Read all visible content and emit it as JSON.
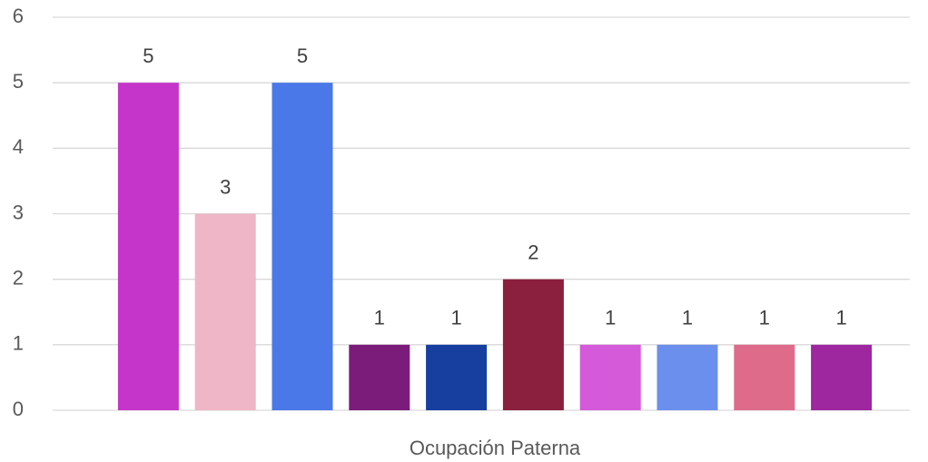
{
  "chart_data": {
    "type": "bar",
    "categories": [
      "Ocupación Paterna"
    ],
    "series": [
      {
        "color": "#c535c9",
        "values": [
          5
        ]
      },
      {
        "color": "#eeb6c6",
        "values": [
          3
        ]
      },
      {
        "color": "#4a78e8",
        "values": [
          5
        ]
      },
      {
        "color": "#7b1c7b",
        "values": [
          1
        ]
      },
      {
        "color": "#163fa0",
        "values": [
          1
        ]
      },
      {
        "color": "#8b1f3e",
        "values": [
          2
        ]
      },
      {
        "color": "#d45ad9",
        "values": [
          1
        ]
      },
      {
        "color": "#6b8fec",
        "values": [
          1
        ]
      },
      {
        "color": "#df6b8a",
        "values": [
          1
        ]
      },
      {
        "color": "#9e27a0",
        "values": [
          1
        ]
      }
    ],
    "ylim": [
      0,
      6
    ],
    "yticks": [
      0,
      1,
      2,
      3,
      4,
      5,
      6
    ],
    "grid": true,
    "data_labels": true
  }
}
